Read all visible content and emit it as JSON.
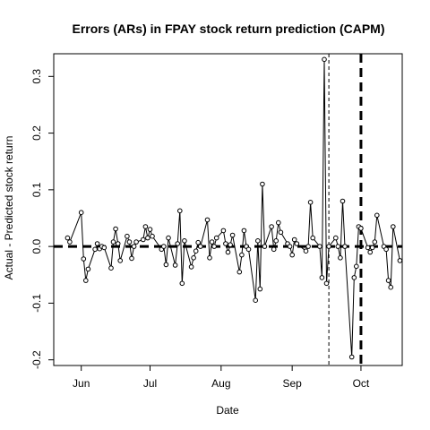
{
  "chart_data": {
    "type": "line",
    "title": "Errors (ARs) in FPAY stock return prediction (CAPM)",
    "xlabel": "Date",
    "ylabel": "Actual - Predicted stock return",
    "xlim": [
      "2021-05-20",
      "2021-10-19"
    ],
    "ylim": [
      -0.21,
      0.34
    ],
    "x_ticks": [
      {
        "label": "Jun",
        "date": "2021-06-01"
      },
      {
        "label": "Jul",
        "date": "2021-07-01"
      },
      {
        "label": "Aug",
        "date": "2021-08-01"
      },
      {
        "label": "Sep",
        "date": "2021-09-01"
      },
      {
        "label": "Oct",
        "date": "2021-10-01"
      }
    ],
    "y_ticks": [
      -0.2,
      -0.1,
      0.0,
      0.1,
      0.2,
      0.3
    ],
    "y_tick_labels": [
      "-0.2",
      "-0.1",
      "0.0",
      "0.1",
      "0.2",
      "0.3"
    ],
    "reference_lines": [
      {
        "orientation": "horizontal",
        "y": 0,
        "style": "dashed-thick"
      },
      {
        "orientation": "vertical",
        "x": "2021-09-17",
        "style": "dashed-thin"
      },
      {
        "orientation": "vertical",
        "x": "2021-10-01",
        "style": "dashed-thick"
      }
    ],
    "series": [
      {
        "x": [
          "2021-05-26",
          "2021-05-27",
          "2021-06-01",
          "2021-06-02",
          "2021-06-03",
          "2021-06-04",
          "2021-06-07",
          "2021-06-08",
          "2021-06-09",
          "2021-06-10",
          "2021-06-11",
          "2021-06-14",
          "2021-06-15",
          "2021-06-16",
          "2021-06-17",
          "2021-06-18",
          "2021-06-21",
          "2021-06-22",
          "2021-06-23",
          "2021-06-24",
          "2021-06-25",
          "2021-06-28",
          "2021-06-29",
          "2021-06-30",
          "2021-07-01",
          "2021-07-02",
          "2021-07-06",
          "2021-07-07",
          "2021-07-08",
          "2021-07-09",
          "2021-07-12",
          "2021-07-13",
          "2021-07-14",
          "2021-07-15",
          "2021-07-16",
          "2021-07-19",
          "2021-07-20",
          "2021-07-21",
          "2021-07-22",
          "2021-07-23",
          "2021-07-26",
          "2021-07-27",
          "2021-07-28",
          "2021-07-29",
          "2021-07-30",
          "2021-08-02",
          "2021-08-03",
          "2021-08-04",
          "2021-08-05",
          "2021-08-06",
          "2021-08-09",
          "2021-08-10",
          "2021-08-11",
          "2021-08-12",
          "2021-08-13",
          "2021-08-16",
          "2021-08-17",
          "2021-08-18",
          "2021-08-19",
          "2021-08-20",
          "2021-08-23",
          "2021-08-24",
          "2021-08-25",
          "2021-08-26",
          "2021-08-27",
          "2021-08-30",
          "2021-08-31",
          "2021-09-01",
          "2021-09-02",
          "2021-09-03",
          "2021-09-07",
          "2021-09-08",
          "2021-09-09",
          "2021-09-10",
          "2021-09-13",
          "2021-09-14",
          "2021-09-15",
          "2021-09-16",
          "2021-09-17",
          "2021-09-20",
          "2021-09-21",
          "2021-09-22",
          "2021-09-23",
          "2021-09-24",
          "2021-09-27",
          "2021-09-28",
          "2021-09-29",
          "2021-09-30",
          "2021-10-01",
          "2021-10-04",
          "2021-10-05",
          "2021-10-06",
          "2021-10-07",
          "2021-10-08",
          "2021-10-11",
          "2021-10-12",
          "2021-10-13",
          "2021-10-14",
          "2021-10-15",
          "2021-10-18"
        ],
        "values": [
          0.015,
          0.008,
          0.06,
          -0.022,
          -0.06,
          -0.04,
          -0.005,
          0.005,
          -0.004,
          0.0,
          -0.002,
          -0.038,
          0.008,
          0.031,
          0.005,
          -0.025,
          0.018,
          0.008,
          -0.021,
          0.0,
          0.008,
          0.012,
          0.035,
          0.015,
          0.03,
          0.018,
          -0.005,
          0.0,
          -0.032,
          0.015,
          -0.033,
          0.005,
          0.063,
          -0.065,
          0.01,
          -0.036,
          -0.02,
          -0.008,
          0.007,
          0.0,
          0.047,
          -0.02,
          0.008,
          0.0,
          0.015,
          0.028,
          0.005,
          -0.01,
          0.003,
          0.02,
          -0.045,
          -0.015,
          0.028,
          0.0,
          -0.005,
          -0.095,
          0.01,
          -0.075,
          0.11,
          0.0,
          0.035,
          -0.005,
          0.01,
          0.042,
          0.025,
          0.005,
          0.0,
          -0.015,
          0.012,
          0.005,
          -0.008,
          0.0,
          0.078,
          0.015,
          0.0,
          -0.055,
          0.33,
          -0.065,
          0.0,
          0.015,
          0.0,
          -0.02,
          0.08,
          0.0,
          -0.195,
          -0.055,
          -0.035,
          0.035,
          0.032,
          -0.002,
          -0.01,
          -0.002,
          0.008,
          0.055,
          0.0,
          -0.005,
          -0.06,
          -0.072,
          0.035,
          -0.025
        ]
      }
    ]
  }
}
